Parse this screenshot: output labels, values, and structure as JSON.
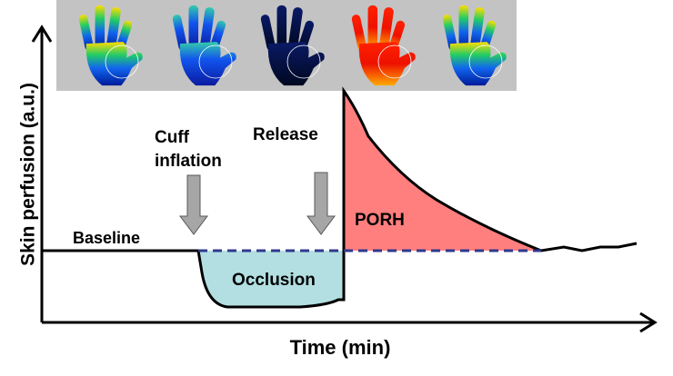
{
  "axes": {
    "y_label": "Skin perfusion (a.u.)",
    "x_label": "Time (min)"
  },
  "annotations": {
    "cuff_inflation": [
      "Cuff",
      "inflation"
    ],
    "release": "Release",
    "baseline": "Baseline",
    "occlusion": "Occlusion",
    "porh": "PORH"
  }
}
